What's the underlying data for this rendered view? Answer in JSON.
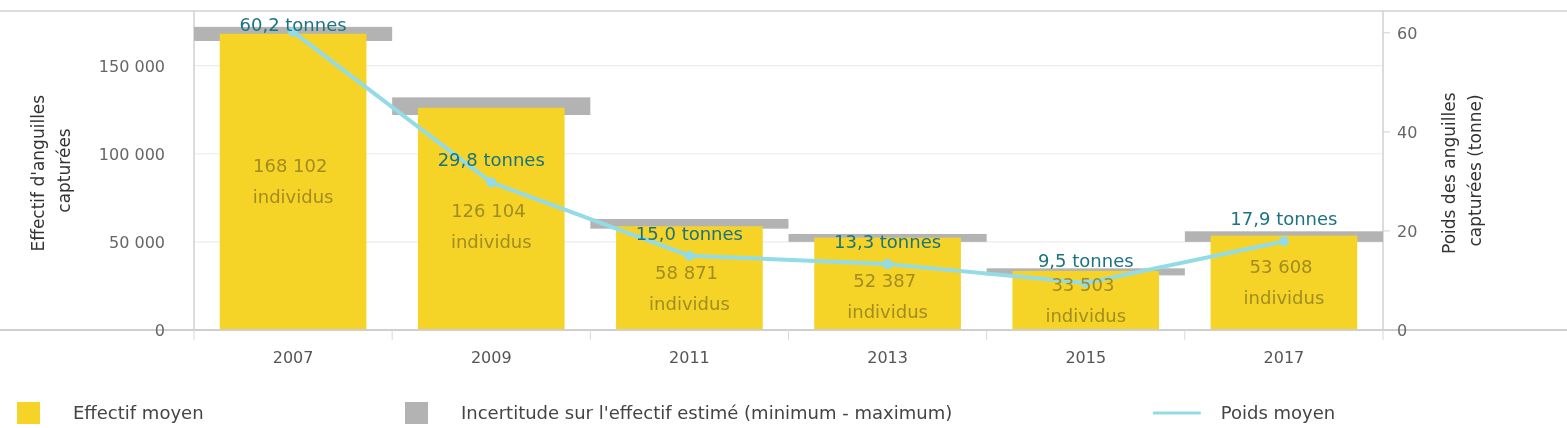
{
  "chart_data": {
    "type": "bar",
    "categories": [
      "2007",
      "2009",
      "2011",
      "2013",
      "2015",
      "2017"
    ],
    "ylabel": "Effectif d'anguilles capturées",
    "y2label": "Poids des anguilles capturées (tonne)",
    "ylim": [
      0,
      181000
    ],
    "yticks": [
      {
        "value": 0,
        "label": "0"
      },
      {
        "value": 50000,
        "label": "50 000"
      },
      {
        "value": 100000,
        "label": "100 000"
      },
      {
        "value": 150000,
        "label": "150 000"
      }
    ],
    "y2lim": [
      0,
      64.4
    ],
    "y2ticks": [
      0,
      20,
      40,
      60
    ],
    "grid": "y",
    "legend": "bottom",
    "series": [
      {
        "name": "Effectif moyen",
        "color": "#f5d327",
        "values": [
          168102,
          126104,
          58871,
          52387,
          33503,
          53608
        ],
        "value_labels": [
          "168 102 individus",
          "126 104 individus",
          "58 871 individus",
          "52 387 individus",
          "33 503 individus",
          "53 608 individus"
        ]
      },
      {
        "name": "Incertitude sur l'effectif estimé (minimum - maximum)",
        "color": "#b3b3b3",
        "base": [
          164000,
          122000,
          57500,
          50000,
          31000,
          50000
        ],
        "values": [
          8000,
          10000,
          5500,
          4500,
          4000,
          6000
        ]
      },
      {
        "name": "Poids moyen",
        "type": "line",
        "axis": "y2",
        "color": "#93dbe6",
        "marker": "circle",
        "values": [
          60.2,
          29.8,
          15.0,
          13.3,
          9.5,
          17.9
        ],
        "value_labels": [
          "60,2 tonnes",
          "29,8 tonnes",
          "15,0 tonnes",
          "13,3 tonnes",
          "9,5 tonnes",
          "17,9 tonnes"
        ]
      }
    ]
  }
}
